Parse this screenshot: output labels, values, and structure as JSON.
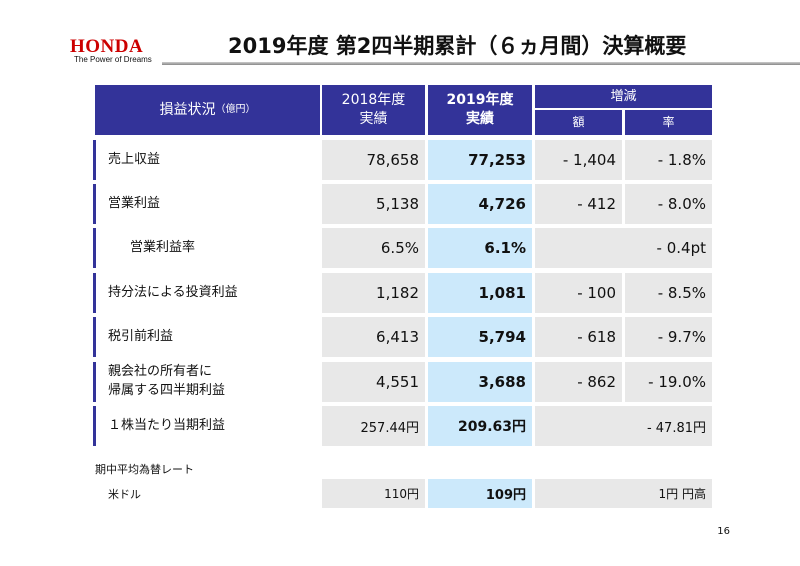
{
  "logo": {
    "brand": "HONDA",
    "tagline": "The Power of Dreams"
  },
  "title": "2019年度 第2四半期累計（６ヵ月間）決算概要",
  "header": {
    "label": "損益状況",
    "unit": "（億円）",
    "prev_line1": "2018年度",
    "prev_line2": "実績",
    "curr_line1": "2019年度",
    "curr_line2": "実績",
    "change": "増減",
    "amount": "額",
    "rate": "率"
  },
  "rows": [
    {
      "label": "売上収益",
      "prev": "78,658",
      "curr": "77,253",
      "amount": "- 1,404",
      "rate": "- 1.8%"
    },
    {
      "label": "営業利益",
      "prev": "5,138",
      "curr": "4,726",
      "amount": "- 412",
      "rate": "- 8.0%"
    },
    {
      "label": "営業利益率",
      "prev": "6.5%",
      "curr": "6.1%",
      "amount": "",
      "rate": "- 0.4pt"
    },
    {
      "label": "持分法による投資利益",
      "prev": "1,182",
      "curr": "1,081",
      "amount": "- 100",
      "rate": "- 8.5%"
    },
    {
      "label": "税引前利益",
      "prev": "6,413",
      "curr": "5,794",
      "amount": "- 618",
      "rate": "- 9.7%"
    },
    {
      "label": "親会社の所有者に\n帰属する四半期利益",
      "prev": "4,551",
      "curr": "3,688",
      "amount": "- 862",
      "rate": "- 19.0%"
    },
    {
      "label": "１株当たり当期利益",
      "prev": "257.44円",
      "curr": "209.63円",
      "amount": "",
      "rate": "- 47.81円"
    }
  ],
  "fx": {
    "heading": "期中平均為替レート",
    "label": "米ドル",
    "prev": "110円",
    "curr": "109円",
    "change": "1円 円高"
  },
  "page_number": "16",
  "colors": {
    "header": "#333399",
    "prev_bg": "#e8e8e8",
    "curr_bg": "#cce9fb",
    "logo": "#cc0000"
  }
}
